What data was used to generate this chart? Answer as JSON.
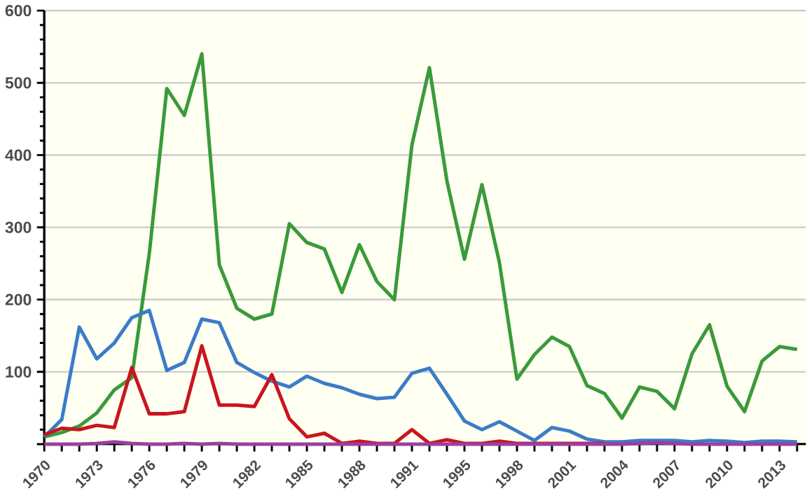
{
  "chart_data": {
    "type": "line",
    "categories": [
      "1970",
      null,
      null,
      "1973",
      null,
      null,
      "1976",
      null,
      null,
      "1979",
      null,
      null,
      "1982",
      null,
      null,
      "1985",
      null,
      null,
      "1988",
      null,
      null,
      "1991",
      null,
      null,
      "1995",
      null,
      null,
      "1998",
      null,
      null,
      "2001",
      null,
      null,
      "2004",
      null,
      null,
      "2007",
      null,
      null,
      "2010",
      null,
      null,
      "2013",
      null
    ],
    "series": [
      {
        "color": "#3a9a3a",
        "values": [
          10,
          16,
          25,
          43,
          75,
          92,
          264,
          492,
          455,
          540,
          248,
          188,
          173,
          180,
          305,
          279,
          270,
          210,
          276,
          225,
          200,
          414,
          521,
          364,
          256,
          359,
          251,
          90,
          124,
          148,
          135,
          81,
          70,
          36,
          79,
          73,
          49,
          125,
          165,
          80,
          45,
          115,
          135,
          131
        ]
      },
      {
        "color": "#3b7cc9",
        "values": [
          10,
          34,
          162,
          118,
          140,
          175,
          185,
          102,
          113,
          173,
          168,
          113,
          99,
          87,
          79,
          94,
          84,
          78,
          69,
          63,
          65,
          98,
          105,
          69,
          32,
          20,
          31,
          18,
          5,
          23,
          18,
          7,
          3,
          3,
          5,
          5,
          5,
          3,
          5,
          4,
          2,
          4,
          4,
          3
        ]
      },
      {
        "color": "#c8161d",
        "values": [
          13,
          22,
          20,
          26,
          23,
          106,
          42,
          42,
          45,
          136,
          54,
          54,
          52,
          96,
          35,
          10,
          15,
          1,
          4,
          1,
          1,
          20,
          1,
          6,
          1,
          1,
          4,
          1,
          1,
          1,
          1,
          1,
          1,
          null,
          null,
          null,
          null,
          null,
          null,
          null,
          null,
          null,
          null,
          null
        ]
      },
      {
        "color": "#9b3fa0",
        "values": [
          0,
          0,
          0,
          1,
          3,
          1,
          0,
          0,
          1,
          0,
          1,
          0,
          0,
          0,
          0,
          0,
          0,
          0,
          0,
          0,
          0,
          0,
          0,
          0,
          0,
          0,
          0,
          0,
          0,
          0,
          0,
          0,
          0,
          0,
          1,
          2,
          1,
          0,
          0,
          0,
          0,
          0,
          0,
          0
        ]
      }
    ],
    "ylim": [
      0,
      600
    ],
    "yticks": [
      {
        "value": 0,
        "label": null
      },
      100,
      200,
      300,
      400,
      500,
      600
    ],
    "grid": "y",
    "marker": "none",
    "line_style": "solid"
  }
}
